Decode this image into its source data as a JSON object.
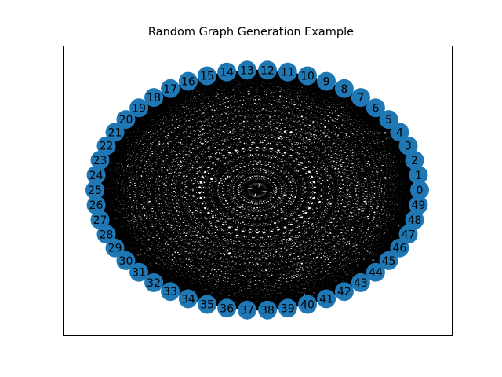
{
  "title": "Random Graph Generation Example",
  "graph": {
    "layout": "circular",
    "node_count": 50,
    "node_color": "#1f77b4",
    "edge_color": "#000000",
    "label_color": "#000000",
    "frame_color": "#000000",
    "nodes": [
      "0",
      "1",
      "2",
      "3",
      "4",
      "5",
      "6",
      "7",
      "8",
      "9",
      "10",
      "11",
      "12",
      "13",
      "14",
      "15",
      "16",
      "17",
      "18",
      "19",
      "20",
      "21",
      "22",
      "23",
      "24",
      "25",
      "26",
      "27",
      "28",
      "29",
      "30",
      "31",
      "32",
      "33",
      "34",
      "35",
      "36",
      "37",
      "38",
      "39",
      "40",
      "41",
      "42",
      "43",
      "44",
      "45",
      "46",
      "47",
      "48",
      "49"
    ],
    "edge_density": 0.9
  }
}
